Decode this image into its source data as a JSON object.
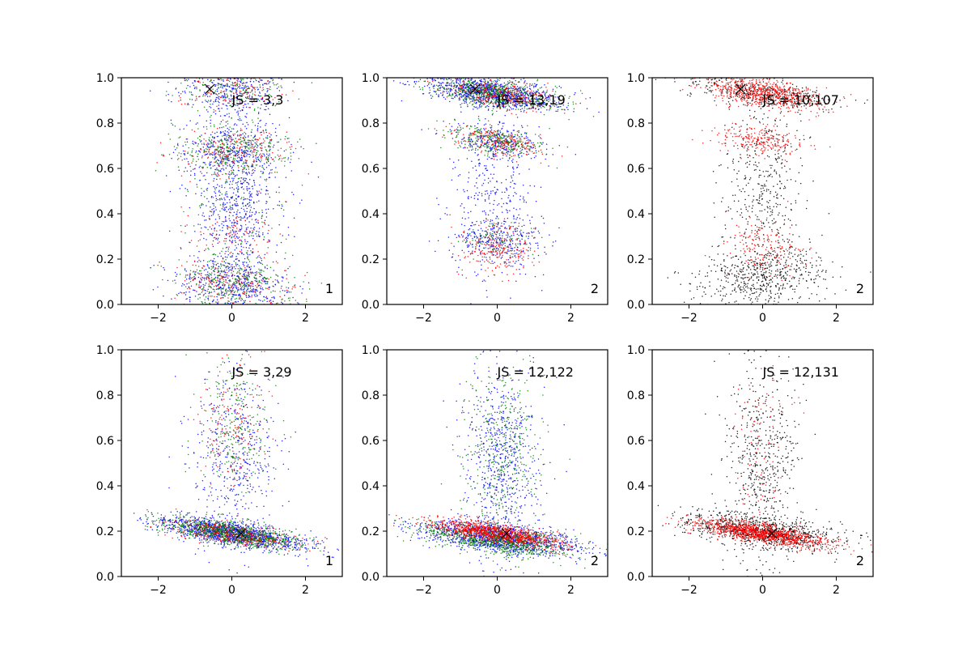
{
  "figure": {
    "background": "#ffffff",
    "colors": {
      "blue": "#0000ff",
      "green": "#008000",
      "red": "#ff0000",
      "black": "#000000"
    }
  },
  "chart_data": [
    {
      "type": "scatter",
      "title": "",
      "xlabel": "",
      "ylabel": "",
      "xlim": [
        -3,
        3
      ],
      "ylim": [
        0,
        1
      ],
      "grid": false,
      "xticks": [
        -2,
        0,
        2
      ],
      "xtick_labels": [
        "−2",
        "0",
        "2"
      ],
      "yticks": [
        0,
        0.2,
        0.4,
        0.6,
        0.8,
        1.0
      ],
      "ytick_labels": [
        "0.0",
        "0.2",
        "0.4",
        "0.6",
        "0.8",
        "1.0"
      ],
      "annotation": "JS = 3,3",
      "corner_label": "1",
      "marker": {
        "symbol": "x",
        "x": -0.6,
        "y": 0.95
      },
      "series": [
        {
          "name": "blue",
          "color": "#0000ff",
          "count": 1700,
          "clusters": [
            {
              "cx": 0,
              "cy": 0.1,
              "sx": 0.8,
              "sy": 0.05,
              "w": 0.22,
              "slope": -0.01
            },
            {
              "cx": 0.1,
              "cy": 0.5,
              "sx": 0.6,
              "sy": 0.28,
              "w": 0.55,
              "slope": 0
            },
            {
              "cx": 0,
              "cy": 0.68,
              "sx": 0.7,
              "sy": 0.05,
              "w": 0.12,
              "slope": 0
            },
            {
              "cx": 0,
              "cy": 0.94,
              "sx": 0.7,
              "sy": 0.04,
              "w": 0.11,
              "slope": 0
            }
          ]
        },
        {
          "name": "green",
          "color": "#008000",
          "count": 900,
          "clusters": [
            {
              "cx": 0,
              "cy": 0.1,
              "sx": 0.8,
              "sy": 0.05,
              "w": 0.3,
              "slope": -0.01
            },
            {
              "cx": 0,
              "cy": 0.68,
              "sx": 0.8,
              "sy": 0.05,
              "w": 0.3,
              "slope": 0
            },
            {
              "cx": 0,
              "cy": 0.5,
              "sx": 0.6,
              "sy": 0.25,
              "w": 0.25,
              "slope": 0
            },
            {
              "cx": 0,
              "cy": 0.94,
              "sx": 0.7,
              "sy": 0.04,
              "w": 0.15,
              "slope": 0
            }
          ]
        },
        {
          "name": "red",
          "color": "#ff0000",
          "count": 600,
          "clusters": [
            {
              "cx": 0,
              "cy": 0.1,
              "sx": 0.8,
              "sy": 0.05,
              "w": 0.3,
              "slope": -0.01
            },
            {
              "cx": 0,
              "cy": 0.68,
              "sx": 0.8,
              "sy": 0.05,
              "w": 0.3,
              "slope": 0
            },
            {
              "cx": 0,
              "cy": 0.3,
              "sx": 0.6,
              "sy": 0.06,
              "w": 0.2,
              "slope": 0
            },
            {
              "cx": 0,
              "cy": 0.94,
              "sx": 0.7,
              "sy": 0.04,
              "w": 0.2,
              "slope": 0
            }
          ]
        }
      ]
    },
    {
      "type": "scatter",
      "title": "",
      "xlabel": "",
      "ylabel": "",
      "xlim": [
        -3,
        3
      ],
      "ylim": [
        0,
        1
      ],
      "grid": false,
      "xticks": [
        -2,
        0,
        2
      ],
      "xtick_labels": [
        "−2",
        "0",
        "2"
      ],
      "yticks": [
        0,
        0.2,
        0.4,
        0.6,
        0.8,
        1.0
      ],
      "ytick_labels": [
        "0.0",
        "0.2",
        "0.4",
        "0.6",
        "0.8",
        "1.0"
      ],
      "annotation": "JS = 13,19",
      "corner_label": "2",
      "marker": {
        "symbol": "x",
        "x": -0.6,
        "y": 0.95
      },
      "series": [
        {
          "name": "blue",
          "color": "#0000ff",
          "count": 1900,
          "clusters": [
            {
              "cx": 0,
              "cy": 0.93,
              "sx": 0.9,
              "sy": 0.03,
              "w": 0.55,
              "slope": -0.02
            },
            {
              "cx": 0,
              "cy": 0.72,
              "sx": 0.7,
              "sy": 0.03,
              "w": 0.12,
              "slope": -0.02
            },
            {
              "cx": 0,
              "cy": 0.28,
              "sx": 0.6,
              "sy": 0.05,
              "w": 0.13,
              "slope": 0
            },
            {
              "cx": 0,
              "cy": 0.5,
              "sx": 0.6,
              "sy": 0.2,
              "w": 0.2,
              "slope": 0
            }
          ]
        },
        {
          "name": "green",
          "color": "#008000",
          "count": 1000,
          "clusters": [
            {
              "cx": 0,
              "cy": 0.93,
              "sx": 0.8,
              "sy": 0.03,
              "w": 0.6,
              "slope": -0.02
            },
            {
              "cx": 0,
              "cy": 0.72,
              "sx": 0.6,
              "sy": 0.03,
              "w": 0.3,
              "slope": -0.02
            },
            {
              "cx": 0,
              "cy": 0.28,
              "sx": 0.5,
              "sy": 0.05,
              "w": 0.1,
              "slope": 0
            }
          ]
        },
        {
          "name": "red",
          "color": "#ff0000",
          "count": 700,
          "clusters": [
            {
              "cx": 0,
              "cy": 0.93,
              "sx": 0.8,
              "sy": 0.03,
              "w": 0.4,
              "slope": -0.02
            },
            {
              "cx": 0,
              "cy": 0.72,
              "sx": 0.6,
              "sy": 0.03,
              "w": 0.3,
              "slope": -0.02
            },
            {
              "cx": 0,
              "cy": 0.25,
              "sx": 0.5,
              "sy": 0.06,
              "w": 0.3,
              "slope": 0
            }
          ]
        }
      ]
    },
    {
      "type": "scatter",
      "title": "",
      "xlabel": "",
      "ylabel": "",
      "xlim": [
        -3,
        3
      ],
      "ylim": [
        0,
        1
      ],
      "grid": false,
      "xticks": [
        -2,
        0,
        2
      ],
      "xtick_labels": [
        "−2",
        "0",
        "2"
      ],
      "yticks": [
        0,
        0.2,
        0.4,
        0.6,
        0.8,
        1.0
      ],
      "ytick_labels": [
        "0.0",
        "0.2",
        "0.4",
        "0.6",
        "0.8",
        "1.0"
      ],
      "annotation": "JS = 10,107",
      "corner_label": "2",
      "marker": {
        "symbol": "x",
        "x": -0.6,
        "y": 0.95
      },
      "series": [
        {
          "name": "black",
          "color": "#000000",
          "count": 1300,
          "clusters": [
            {
              "cx": 0,
              "cy": 0.93,
              "sx": 1.0,
              "sy": 0.03,
              "w": 0.25,
              "slope": -0.02
            },
            {
              "cx": 0,
              "cy": 0.5,
              "sx": 0.55,
              "sy": 0.22,
              "w": 0.35,
              "slope": 0
            },
            {
              "cx": 0,
              "cy": 0.12,
              "sx": 0.9,
              "sy": 0.06,
              "w": 0.4,
              "slope": 0
            }
          ]
        },
        {
          "name": "red",
          "color": "#ff0000",
          "count": 1100,
          "clusters": [
            {
              "cx": 0,
              "cy": 0.93,
              "sx": 0.8,
              "sy": 0.03,
              "w": 0.65,
              "slope": -0.02
            },
            {
              "cx": 0,
              "cy": 0.72,
              "sx": 0.6,
              "sy": 0.03,
              "w": 0.2,
              "slope": -0.02
            },
            {
              "cx": 0,
              "cy": 0.25,
              "sx": 0.5,
              "sy": 0.06,
              "w": 0.15,
              "slope": 0
            }
          ]
        }
      ]
    },
    {
      "type": "scatter",
      "title": "",
      "xlabel": "",
      "ylabel": "",
      "xlim": [
        -3,
        3
      ],
      "ylim": [
        0,
        1
      ],
      "grid": false,
      "xticks": [
        -2,
        0,
        2
      ],
      "xtick_labels": [
        "−2",
        "0",
        "2"
      ],
      "yticks": [
        0,
        0.2,
        0.4,
        0.6,
        0.8,
        1.0
      ],
      "ytick_labels": [
        "0.0",
        "0.2",
        "0.4",
        "0.6",
        "0.8",
        "1.0"
      ],
      "annotation": "JS = 3,29",
      "corner_label": "1",
      "marker": {
        "symbol": "x",
        "x": 0.25,
        "y": 0.19
      },
      "series": [
        {
          "name": "blue",
          "color": "#0000ff",
          "count": 1700,
          "clusters": [
            {
              "cx": 0,
              "cy": 0.19,
              "sx": 1.0,
              "sy": 0.025,
              "w": 0.75,
              "slope": -0.025
            },
            {
              "cx": 0.1,
              "cy": 0.55,
              "sx": 0.6,
              "sy": 0.2,
              "w": 0.25,
              "slope": 0
            }
          ]
        },
        {
          "name": "green",
          "color": "#008000",
          "count": 1100,
          "clusters": [
            {
              "cx": 0,
              "cy": 0.19,
              "sx": 0.9,
              "sy": 0.025,
              "w": 0.8,
              "slope": -0.025
            },
            {
              "cx": 0.1,
              "cy": 0.65,
              "sx": 0.5,
              "sy": 0.15,
              "w": 0.2,
              "slope": 0
            }
          ]
        },
        {
          "name": "red",
          "color": "#ff0000",
          "count": 500,
          "clusters": [
            {
              "cx": 0,
              "cy": 0.19,
              "sx": 0.9,
              "sy": 0.025,
              "w": 0.7,
              "slope": -0.025
            },
            {
              "cx": 0,
              "cy": 0.7,
              "sx": 0.5,
              "sy": 0.12,
              "w": 0.3,
              "slope": 0
            }
          ]
        }
      ]
    },
    {
      "type": "scatter",
      "title": "",
      "xlabel": "",
      "ylabel": "",
      "xlim": [
        -3,
        3
      ],
      "ylim": [
        0,
        1
      ],
      "grid": false,
      "xticks": [
        -2,
        0,
        2
      ],
      "xtick_labels": [
        "−2",
        "0",
        "2"
      ],
      "yticks": [
        0,
        0.2,
        0.4,
        0.6,
        0.8,
        1.0
      ],
      "ytick_labels": [
        "0.0",
        "0.2",
        "0.4",
        "0.6",
        "0.8",
        "1.0"
      ],
      "annotation": "JS = 12,122",
      "corner_label": "2",
      "marker": {
        "symbol": "x",
        "x": 0.25,
        "y": 0.19
      },
      "series": [
        {
          "name": "blue",
          "color": "#0000ff",
          "count": 1800,
          "clusters": [
            {
              "cx": 0,
              "cy": 0.17,
              "sx": 1.1,
              "sy": 0.03,
              "w": 0.65,
              "slope": -0.02
            },
            {
              "cx": 0.1,
              "cy": 0.5,
              "sx": 0.5,
              "sy": 0.2,
              "w": 0.35,
              "slope": 0
            }
          ]
        },
        {
          "name": "green",
          "color": "#008000",
          "count": 1300,
          "clusters": [
            {
              "cx": 0,
              "cy": 0.16,
              "sx": 1.0,
              "sy": 0.03,
              "w": 0.7,
              "slope": -0.02
            },
            {
              "cx": 0.1,
              "cy": 0.55,
              "sx": 0.5,
              "sy": 0.2,
              "w": 0.3,
              "slope": 0
            }
          ]
        },
        {
          "name": "red",
          "color": "#ff0000",
          "count": 1000,
          "clusters": [
            {
              "cx": 0,
              "cy": 0.19,
              "sx": 0.9,
              "sy": 0.02,
              "w": 1.0,
              "slope": -0.025
            }
          ]
        }
      ]
    },
    {
      "type": "scatter",
      "title": "",
      "xlabel": "",
      "ylabel": "",
      "xlim": [
        -3,
        3
      ],
      "ylim": [
        0,
        1
      ],
      "grid": false,
      "xticks": [
        -2,
        0,
        2
      ],
      "xtick_labels": [
        "−2",
        "0",
        "2"
      ],
      "yticks": [
        0,
        0.2,
        0.4,
        0.6,
        0.8,
        1.0
      ],
      "ytick_labels": [
        "0.0",
        "0.2",
        "0.4",
        "0.6",
        "0.8",
        "1.0"
      ],
      "annotation": "JS = 12,131",
      "corner_label": "2",
      "marker": {
        "symbol": "x",
        "x": 0.25,
        "y": 0.19
      },
      "series": [
        {
          "name": "black",
          "color": "#000000",
          "count": 1400,
          "clusters": [
            {
              "cx": 0,
              "cy": 0.2,
              "sx": 1.1,
              "sy": 0.035,
              "w": 0.6,
              "slope": -0.02
            },
            {
              "cx": 0,
              "cy": 0.5,
              "sx": 0.5,
              "sy": 0.22,
              "w": 0.4,
              "slope": 0
            }
          ]
        },
        {
          "name": "red",
          "color": "#ff0000",
          "count": 1300,
          "clusters": [
            {
              "cx": 0,
              "cy": 0.19,
              "sx": 0.9,
              "sy": 0.02,
              "w": 0.92,
              "slope": -0.025
            },
            {
              "cx": 0,
              "cy": 0.6,
              "sx": 0.4,
              "sy": 0.2,
              "w": 0.08,
              "slope": 0
            }
          ]
        }
      ]
    }
  ]
}
